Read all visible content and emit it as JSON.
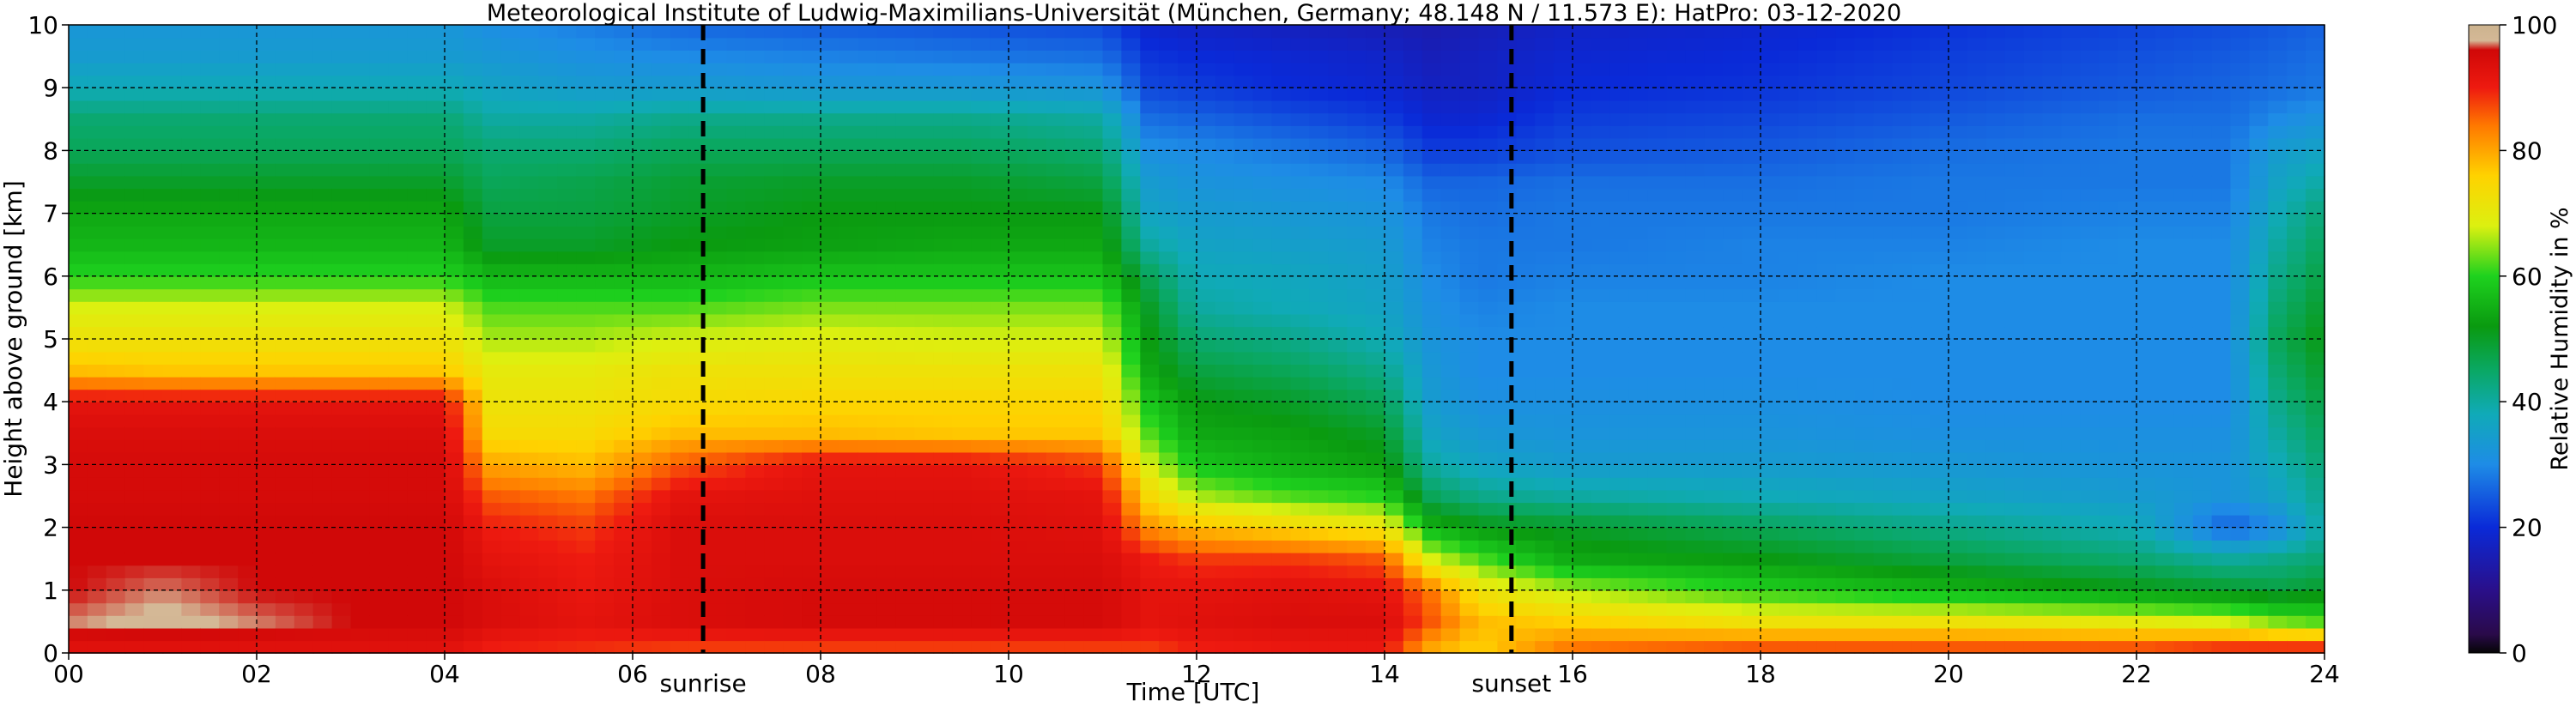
{
  "chart_data": {
    "type": "heatmap",
    "title": "Meteorological Institute of Ludwig-Maximilians-Universität (München, Germany; 48.148 N / 11.573 E):    HatPro: 03-12-2020",
    "xlabel": "Time [UTC]",
    "ylabel": "Height above ground [km]",
    "xlim": [
      0,
      24
    ],
    "ylim": [
      0,
      10
    ],
    "x_ticks": [
      0,
      2,
      4,
      6,
      8,
      10,
      12,
      14,
      16,
      18,
      20,
      22,
      24
    ],
    "x_tick_labels": [
      "00",
      "02",
      "04",
      "06",
      "08",
      "10",
      "12",
      "14",
      "16",
      "18",
      "20",
      "22",
      "24"
    ],
    "y_ticks": [
      0,
      1,
      2,
      3,
      4,
      5,
      6,
      7,
      8,
      9,
      10
    ],
    "y_tick_labels": [
      "0",
      "1",
      "2",
      "3",
      "4",
      "5",
      "6",
      "7",
      "8",
      "9",
      "10"
    ],
    "grid": true,
    "events": [
      {
        "name": "sunrise",
        "time": 6.75
      },
      {
        "name": "sunset",
        "time": 15.35
      }
    ],
    "colorbar": {
      "label": "Relative Humidity in %",
      "range": [
        0,
        100
      ],
      "ticks": [
        0,
        20,
        40,
        60,
        80,
        100
      ],
      "stops": [
        {
          "value": 0,
          "color": "#050505"
        },
        {
          "value": 3,
          "color": "#2a0a4a"
        },
        {
          "value": 10,
          "color": "#2a0f8a"
        },
        {
          "value": 20,
          "color": "#0a2ad8"
        },
        {
          "value": 30,
          "color": "#1e8ce6"
        },
        {
          "value": 38,
          "color": "#10aab8"
        },
        {
          "value": 45,
          "color": "#0aa864"
        },
        {
          "value": 52,
          "color": "#0a9a10"
        },
        {
          "value": 60,
          "color": "#1ed21e"
        },
        {
          "value": 68,
          "color": "#dcf010"
        },
        {
          "value": 76,
          "color": "#ffd200"
        },
        {
          "value": 84,
          "color": "#ff7800"
        },
        {
          "value": 90,
          "color": "#ee1a10"
        },
        {
          "value": 96,
          "color": "#d00808"
        },
        {
          "value": 97.5,
          "color": "#d4b896"
        },
        {
          "value": 100,
          "color": "#ccb38e"
        }
      ]
    },
    "heights_km": [
      0.1,
      0.5,
      1.0,
      1.5,
      2.0,
      2.5,
      3.0,
      3.5,
      4.0,
      4.5,
      5.0,
      5.5,
      6.0,
      6.5,
      7.0,
      7.5,
      8.0,
      8.5,
      9.0,
      9.5,
      9.9
    ],
    "profiles": [
      {
        "time": 0.0,
        "rh": [
          93,
          97,
          96,
          96,
          96,
          95,
          95,
          94,
          92,
          78,
          72,
          68,
          60,
          56,
          54,
          50,
          46,
          44,
          38,
          34,
          33
        ]
      },
      {
        "time": 1.0,
        "rh": [
          93,
          98,
          97,
          96,
          96,
          95,
          95,
          94,
          92,
          77,
          72,
          68,
          60,
          56,
          54,
          50,
          46,
          44,
          38,
          34,
          33
        ]
      },
      {
        "time": 2.0,
        "rh": [
          93,
          97,
          96,
          96,
          96,
          95,
          95,
          94,
          92,
          77,
          72,
          68,
          60,
          56,
          54,
          50,
          46,
          44,
          38,
          34,
          33
        ]
      },
      {
        "time": 3.0,
        "rh": [
          93,
          96,
          96,
          96,
          96,
          95,
          95,
          94,
          92,
          77,
          72,
          68,
          60,
          56,
          54,
          50,
          46,
          44,
          38,
          34,
          33
        ]
      },
      {
        "time": 4.0,
        "rh": [
          93,
          96,
          96,
          96,
          96,
          95,
          95,
          94,
          92,
          77,
          72,
          68,
          60,
          56,
          54,
          50,
          46,
          44,
          38,
          34,
          33
        ]
      },
      {
        "time": 4.5,
        "rh": [
          90,
          94,
          94,
          92,
          90,
          86,
          80,
          74,
          72,
          70,
          66,
          62,
          56,
          50,
          48,
          46,
          44,
          40,
          36,
          33,
          31
        ]
      },
      {
        "time": 5.5,
        "rh": [
          89,
          92,
          91,
          90,
          88,
          84,
          78,
          74,
          72,
          70,
          66,
          62,
          56,
          50,
          48,
          47,
          44,
          40,
          34,
          31,
          29
        ]
      },
      {
        "time": 6.5,
        "rh": [
          88,
          94,
          94,
          94,
          94,
          92,
          86,
          78,
          74,
          72,
          68,
          62,
          56,
          52,
          50,
          49,
          46,
          42,
          34,
          30,
          27
        ]
      },
      {
        "time": 8.0,
        "rh": [
          88,
          95,
          95,
          94,
          94,
          93,
          92,
          78,
          75,
          72,
          69,
          64,
          58,
          53,
          52,
          50,
          46,
          42,
          33,
          29,
          26
        ]
      },
      {
        "time": 9.5,
        "rh": [
          88,
          95,
          95,
          94,
          94,
          93,
          92,
          77,
          75,
          72,
          68,
          64,
          58,
          54,
          52,
          50,
          46,
          42,
          33,
          28,
          25
        ]
      },
      {
        "time": 11.0,
        "rh": [
          88,
          95,
          95,
          94,
          93,
          92,
          88,
          77,
          75,
          72,
          68,
          64,
          58,
          54,
          52,
          48,
          44,
          40,
          32,
          27,
          24
        ]
      },
      {
        "time": 11.5,
        "rh": [
          88,
          92,
          92,
          90,
          82,
          74,
          68,
          62,
          58,
          54,
          52,
          50,
          46,
          40,
          36,
          34,
          31,
          27,
          23,
          21,
          19
        ]
      },
      {
        "time": 12.0,
        "rh": [
          90,
          93,
          92,
          88,
          78,
          66,
          58,
          54,
          52,
          48,
          44,
          40,
          38,
          36,
          34,
          32,
          30,
          26,
          22,
          20,
          18
        ]
      },
      {
        "time": 13.0,
        "rh": [
          91,
          94,
          93,
          88,
          75,
          62,
          55,
          53,
          50,
          46,
          42,
          38,
          37,
          35,
          33,
          31,
          28,
          24,
          20,
          19,
          17
        ]
      },
      {
        "time": 14.0,
        "rh": [
          91,
          94,
          92,
          86,
          72,
          60,
          53,
          50,
          46,
          42,
          38,
          36,
          35,
          34,
          32,
          30,
          26,
          22,
          19,
          18,
          16
        ]
      },
      {
        "time": 14.5,
        "rh": [
          80,
          86,
          84,
          68,
          56,
          46,
          40,
          36,
          34,
          33,
          32,
          31,
          30,
          29,
          28,
          26,
          22,
          19,
          17,
          16,
          15
        ]
      },
      {
        "time": 15.0,
        "rh": [
          76,
          78,
          72,
          62,
          52,
          42,
          36,
          33,
          31,
          30,
          30,
          29,
          28,
          28,
          27,
          26,
          22,
          19,
          17,
          17,
          16
        ]
      },
      {
        "time": 16.0,
        "rh": [
          84,
          76,
          66,
          54,
          50,
          40,
          34,
          32,
          31,
          30,
          30,
          30,
          29,
          28,
          28,
          27,
          24,
          22,
          20,
          19,
          18
        ]
      },
      {
        "time": 18.0,
        "rh": [
          86,
          72,
          60,
          52,
          46,
          38,
          34,
          32,
          31,
          30,
          30,
          30,
          29,
          29,
          28,
          27,
          25,
          23,
          21,
          20,
          19
        ]
      },
      {
        "time": 20.0,
        "rh": [
          86,
          72,
          56,
          48,
          42,
          36,
          33,
          31,
          30,
          30,
          30,
          30,
          30,
          29,
          28,
          28,
          27,
          25,
          23,
          22,
          21
        ]
      },
      {
        "time": 22.0,
        "rh": [
          86,
          70,
          52,
          44,
          38,
          34,
          32,
          31,
          30,
          30,
          30,
          30,
          30,
          30,
          29,
          28,
          28,
          27,
          25,
          24,
          23
        ]
      },
      {
        "time": 23.0,
        "rh": [
          88,
          68,
          50,
          40,
          25,
          32,
          32,
          31,
          30,
          30,
          30,
          30,
          30,
          30,
          29,
          28,
          28,
          27,
          26,
          25,
          24
        ]
      },
      {
        "time": 23.5,
        "rh": [
          88,
          64,
          48,
          42,
          30,
          36,
          38,
          40,
          42,
          44,
          46,
          44,
          42,
          40,
          38,
          36,
          34,
          30,
          27,
          26,
          25
        ]
      },
      {
        "time": 24.0,
        "rh": [
          88,
          62,
          50,
          44,
          40,
          42,
          44,
          46,
          48,
          50,
          52,
          50,
          48,
          46,
          44,
          40,
          36,
          32,
          28,
          27,
          26
        ]
      }
    ]
  }
}
